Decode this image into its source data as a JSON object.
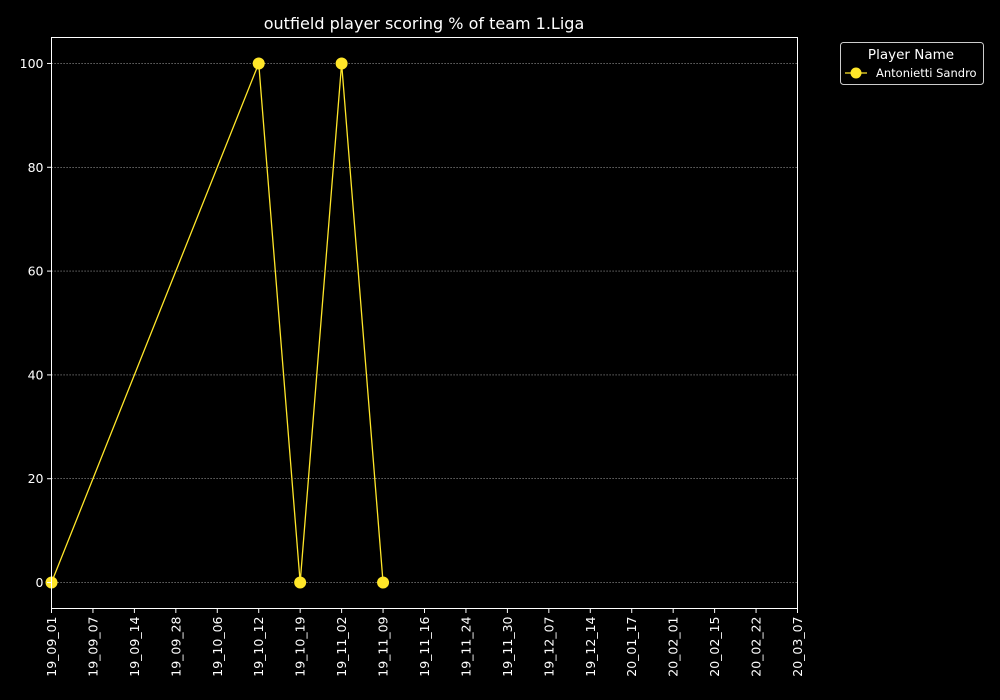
{
  "chart_data": {
    "type": "line",
    "title": "outfield player scoring % of team 1.Liga",
    "xlabel": "",
    "ylabel": "",
    "categories": [
      "19_09_01",
      "19_09_07",
      "19_09_14",
      "19_09_28",
      "19_10_06",
      "19_10_12",
      "19_10_19",
      "19_11_02",
      "19_11_09",
      "19_11_16",
      "19_11_24",
      "19_11_30",
      "19_12_07",
      "19_12_14",
      "20_01_17",
      "20_02_01",
      "20_02_15",
      "20_02_22",
      "20_03_07"
    ],
    "ylim": [
      -5,
      105
    ],
    "yticks": [
      0,
      20,
      40,
      60,
      80,
      100
    ],
    "grid": "horizontal dotted",
    "legend": {
      "title": "Player Name",
      "position": "outside top-right"
    },
    "series": [
      {
        "name": "Antonietti Sandro",
        "color": "#ffe629",
        "points": [
          {
            "x": "19_09_01",
            "y": 0
          },
          {
            "x": "19_10_12",
            "y": 100
          },
          {
            "x": "19_10_19",
            "y": 0
          },
          {
            "x": "19_11_02",
            "y": 100
          },
          {
            "x": "19_11_09",
            "y": 0
          }
        ]
      }
    ]
  }
}
